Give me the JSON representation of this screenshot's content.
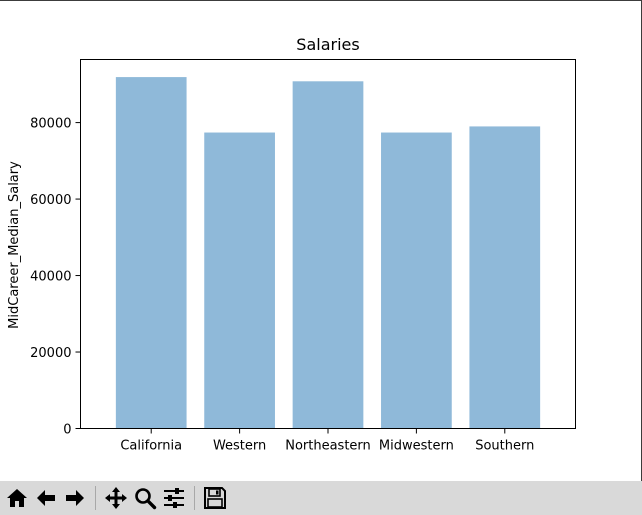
{
  "window": {
    "frame": "matplotlib-figure"
  },
  "toolbar": {
    "buttons": [
      {
        "name": "home-button",
        "icon": "home-icon"
      },
      {
        "name": "back-button",
        "icon": "arrow-left-icon"
      },
      {
        "name": "forward-button",
        "icon": "arrow-right-icon"
      },
      {
        "name": "pan-button",
        "icon": "move-icon"
      },
      {
        "name": "zoom-button",
        "icon": "magnifier-icon"
      },
      {
        "name": "configure-subplots-button",
        "icon": "sliders-icon"
      },
      {
        "name": "save-button",
        "icon": "floppy-disk-icon"
      }
    ]
  },
  "chart_data": {
    "type": "bar",
    "title": "Salaries",
    "xlabel": "",
    "ylabel": "MidCareer_Median_Salary",
    "categories": [
      "California",
      "Western",
      "Northeastern",
      "Midwestern",
      "Southern"
    ],
    "values": [
      91900,
      77400,
      90800,
      77400,
      79000
    ],
    "ylim": [
      0,
      96500
    ],
    "yticks": [
      0,
      20000,
      40000,
      60000,
      80000
    ],
    "bar_color": "#8fb9d9",
    "grid": false
  }
}
